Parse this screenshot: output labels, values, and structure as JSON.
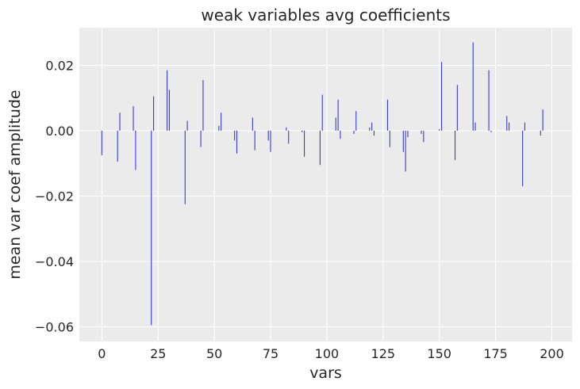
{
  "chart_data": {
    "type": "bar",
    "title": "weak variables avg coefficients",
    "xlabel": "vars",
    "ylabel": "mean var coef amplitude",
    "xlim": [
      -10,
      209
    ],
    "ylim": [
      -0.0645,
      0.0315
    ],
    "xticks": [
      0,
      25,
      50,
      75,
      100,
      125,
      150,
      175,
      200
    ],
    "xtick_labels": [
      "0",
      "25",
      "50",
      "75",
      "100",
      "125",
      "150",
      "175",
      "200"
    ],
    "yticks": [
      -0.06,
      -0.04,
      -0.02,
      0.0,
      0.02
    ],
    "ytick_labels": [
      "−0.06",
      "−0.04",
      "−0.02",
      "0.00",
      "0.02"
    ],
    "grid": true,
    "colors": {
      "bar": "#3a3ad6",
      "background": "#ebebeb",
      "grid": "#ffffff",
      "text": "#262626"
    },
    "x": [
      0,
      7,
      8,
      14,
      15,
      22,
      23,
      29,
      30,
      37,
      38,
      44,
      45,
      52,
      53,
      59,
      60,
      67,
      68,
      74,
      75,
      82,
      83,
      89,
      90,
      97,
      98,
      104,
      105,
      106,
      112,
      113,
      119,
      120,
      121,
      127,
      128,
      134,
      135,
      136,
      142,
      143,
      150,
      151,
      157,
      158,
      165,
      166,
      172,
      173,
      180,
      181,
      187,
      188,
      195,
      196
    ],
    "values": [
      -0.0075,
      -0.0095,
      0.0055,
      0.0075,
      -0.012,
      -0.0595,
      0.0105,
      0.0185,
      0.0125,
      -0.0225,
      0.003,
      -0.005,
      0.0155,
      0.0015,
      0.0055,
      -0.003,
      -0.007,
      0.004,
      -0.006,
      -0.003,
      -0.0065,
      0.001,
      -0.004,
      -0.0005,
      -0.008,
      -0.0105,
      0.011,
      0.004,
      0.0095,
      -0.0025,
      -0.001,
      0.006,
      0.001,
      0.0025,
      -0.0015,
      0.0095,
      -0.005,
      -0.0065,
      -0.0125,
      -0.002,
      -0.001,
      -0.0035,
      0.0005,
      0.021,
      -0.009,
      0.014,
      0.027,
      0.0025,
      0.0185,
      -0.0005,
      0.0045,
      0.0025,
      -0.017,
      0.0025,
      -0.0015,
      0.0065
    ]
  }
}
